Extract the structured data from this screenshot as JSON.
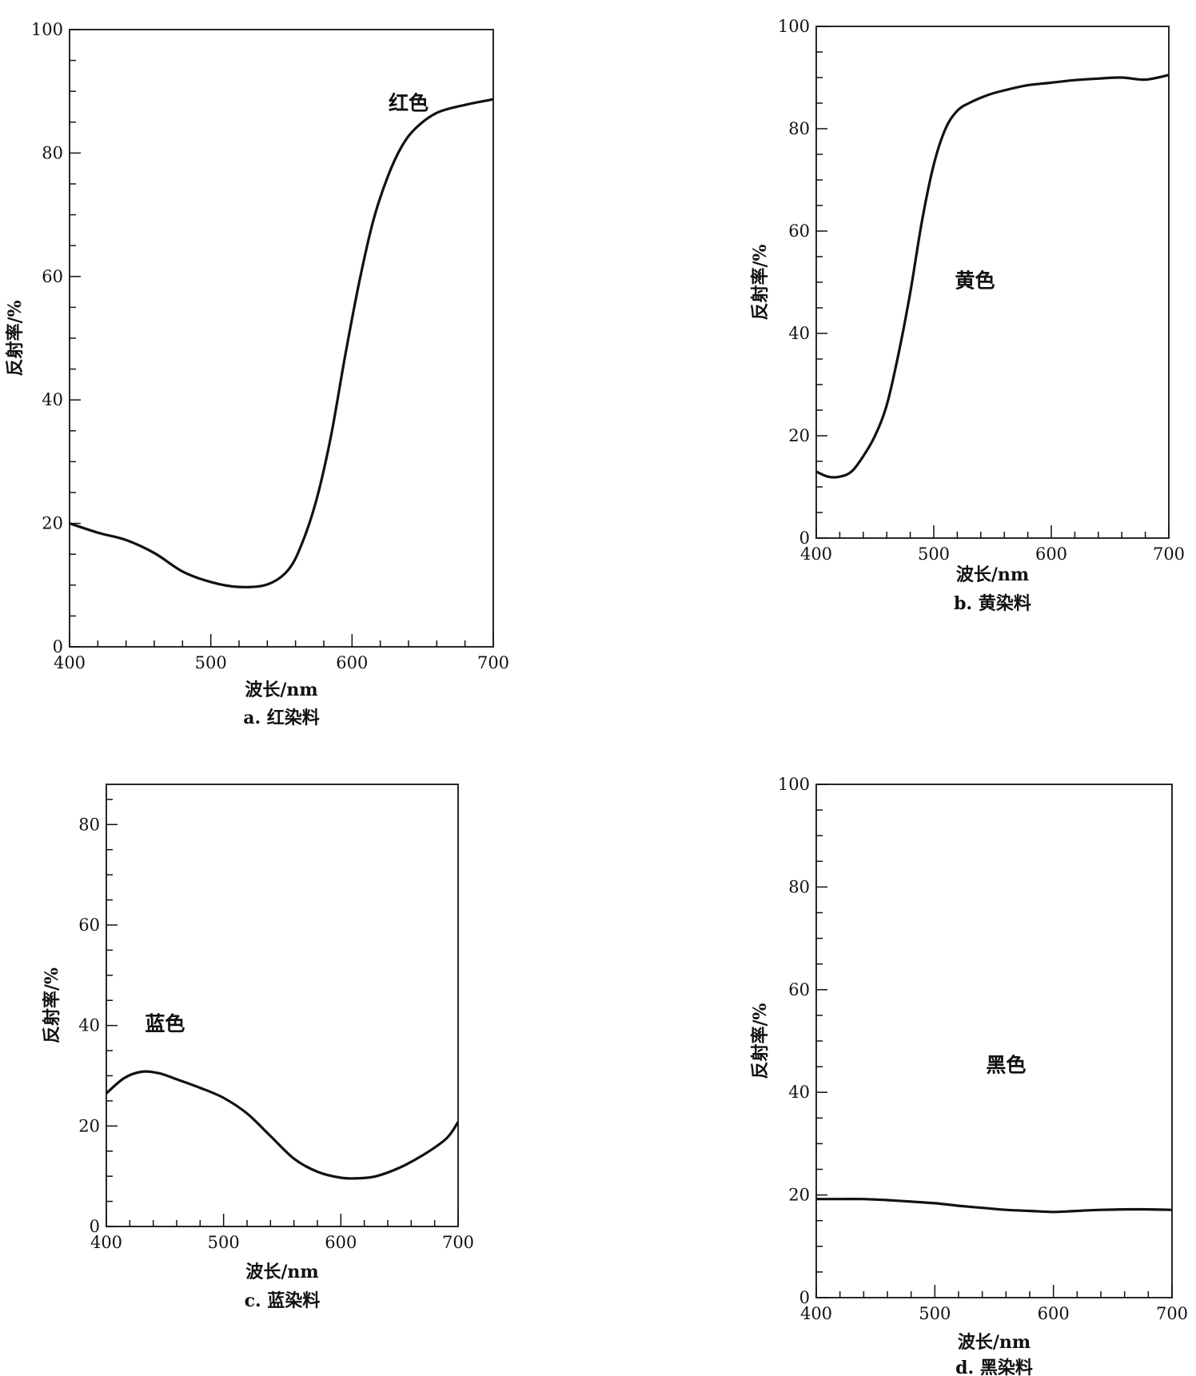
{
  "chart_data": [
    {
      "type": "line",
      "panel": "a",
      "caption": "a. 红染料",
      "xlabel": "波长/nm",
      "ylabel": "反射率/%",
      "xlim": [
        400,
        700
      ],
      "ylim": [
        0,
        100
      ],
      "xticks": [
        400,
        500,
        600,
        700
      ],
      "yticks": [
        0,
        20,
        40,
        60,
        80,
        100
      ],
      "annotation": {
        "text": "红色",
        "x": 640,
        "y": 87
      },
      "series": [
        {
          "x": [
            400,
            420,
            440,
            460,
            480,
            500,
            520,
            540,
            555,
            565,
            575,
            585,
            595,
            605,
            615,
            625,
            635,
            645,
            660,
            680,
            700
          ],
          "y": [
            20,
            18.5,
            17.3,
            15.2,
            12.2,
            10.5,
            9.7,
            10.1,
            12.5,
            17,
            24,
            34,
            47,
            59,
            69,
            76,
            81,
            84,
            86.5,
            87.8,
            88.7
          ]
        }
      ]
    },
    {
      "type": "line",
      "panel": "b",
      "caption": "b. 黄染料",
      "xlabel": "波长/nm",
      "ylabel": "反射率/%",
      "xlim": [
        400,
        700
      ],
      "ylim": [
        0,
        100
      ],
      "xticks": [
        400,
        500,
        600,
        700
      ],
      "yticks": [
        0,
        20,
        40,
        60,
        80,
        100
      ],
      "annotation": {
        "text": "黄色",
        "x": 535,
        "y": 49
      },
      "series": [
        {
          "x": [
            400,
            410,
            420,
            430,
            440,
            450,
            460,
            470,
            480,
            490,
            500,
            510,
            520,
            530,
            545,
            560,
            580,
            600,
            620,
            640,
            660,
            680,
            700
          ],
          "y": [
            13,
            12,
            12,
            13,
            16,
            20,
            26,
            36,
            48,
            62,
            73,
            80,
            83.5,
            85,
            86.5,
            87.5,
            88.5,
            89,
            89.5,
            89.8,
            90,
            89.6,
            90.5
          ]
        }
      ]
    },
    {
      "type": "line",
      "panel": "c",
      "caption": "c. 蓝染料",
      "xlabel": "波长/nm",
      "ylabel": "反射率/%",
      "xlim": [
        400,
        700
      ],
      "ylim": [
        0,
        88
      ],
      "xticks": [
        400,
        500,
        600,
        700
      ],
      "yticks": [
        0,
        20,
        40,
        60,
        80
      ],
      "annotation": {
        "text": "蓝色",
        "x": 450,
        "y": 39
      },
      "series": [
        {
          "x": [
            400,
            415,
            430,
            445,
            460,
            480,
            500,
            520,
            540,
            560,
            580,
            600,
            615,
            630,
            650,
            670,
            690,
            700
          ],
          "y": [
            26.5,
            29.5,
            30.8,
            30.5,
            29.3,
            27.6,
            25.6,
            22.5,
            18,
            13.5,
            10.9,
            9.7,
            9.6,
            10,
            11.7,
            14.2,
            17.5,
            20.8
          ]
        }
      ]
    },
    {
      "type": "line",
      "panel": "d",
      "caption": "d. 黑染料",
      "xlabel": "波长/nm",
      "ylabel": "反射率/%",
      "xlim": [
        400,
        700
      ],
      "ylim": [
        0,
        100
      ],
      "xticks": [
        400,
        500,
        600,
        700
      ],
      "yticks": [
        0,
        20,
        40,
        60,
        80,
        100
      ],
      "annotation": {
        "text": "黑色",
        "x": 560,
        "y": 44
      },
      "series": [
        {
          "x": [
            400,
            420,
            440,
            460,
            480,
            500,
            520,
            540,
            560,
            580,
            600,
            620,
            640,
            660,
            680,
            700
          ],
          "y": [
            19.2,
            19.2,
            19.2,
            19.0,
            18.7,
            18.4,
            17.9,
            17.5,
            17.1,
            16.9,
            16.7,
            16.9,
            17.1,
            17.2,
            17.2,
            17.1
          ]
        }
      ]
    }
  ]
}
